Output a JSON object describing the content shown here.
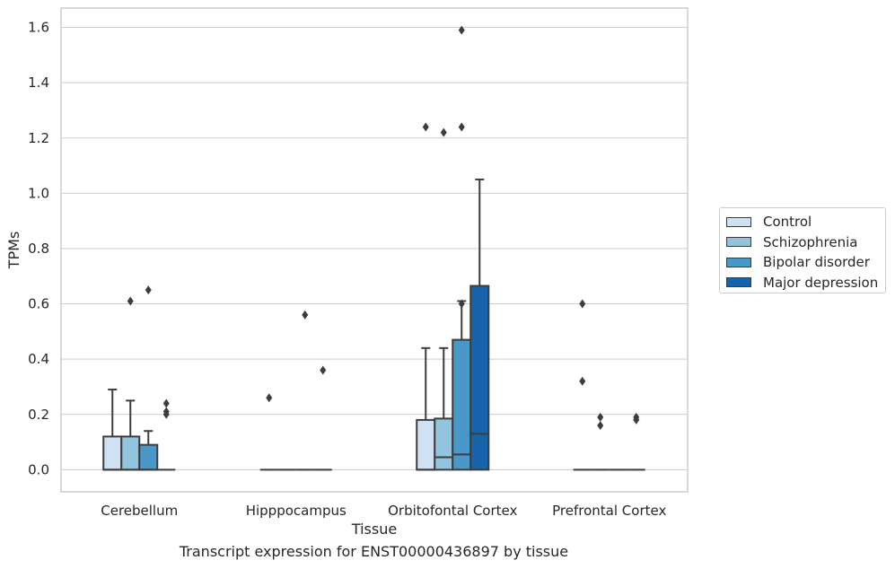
{
  "caption": "Transcript expression for ENST00000436897 by tissue",
  "chart_data": {
    "type": "box",
    "xlabel": "Tissue",
    "ylabel": "TPMs",
    "ylim": [
      -0.08,
      1.67
    ],
    "yticks": [
      "0.0",
      "0.2",
      "0.4",
      "0.6",
      "0.8",
      "1.0",
      "1.2",
      "1.4",
      "1.6"
    ],
    "grid": "horizontal",
    "legend_position": "right",
    "categories": [
      "Cerebellum",
      "Hipppocampus",
      "Orbitofontal Cortex",
      "Prefrontal Cortex"
    ],
    "series": [
      {
        "name": "Control",
        "color": "#cfe1f2"
      },
      {
        "name": "Schizophrenia",
        "color": "#93c4de"
      },
      {
        "name": "Bipolar disorder",
        "color": "#4a98c9"
      },
      {
        "name": "Major depression",
        "color": "#1764ab"
      }
    ],
    "boxes": [
      {
        "category": "Cerebellum",
        "series": "Control",
        "min": 0,
        "q1": 0,
        "median": 0,
        "q3": 0.12,
        "max": 0.29,
        "outliers": []
      },
      {
        "category": "Cerebellum",
        "series": "Schizophrenia",
        "min": 0,
        "q1": 0,
        "median": 0,
        "q3": 0.12,
        "max": 0.25,
        "outliers": [
          0.61
        ]
      },
      {
        "category": "Cerebellum",
        "series": "Bipolar disorder",
        "min": 0,
        "q1": 0,
        "median": 0,
        "q3": 0.09,
        "max": 0.14,
        "outliers": [
          0.65
        ]
      },
      {
        "category": "Cerebellum",
        "series": "Major depression",
        "min": 0,
        "q1": 0,
        "median": 0,
        "q3": 0,
        "max": 0,
        "outliers": [
          0.24,
          0.21,
          0.2
        ]
      },
      {
        "category": "Hipppocampus",
        "series": "Control",
        "min": 0,
        "q1": 0,
        "median": 0,
        "q3": 0,
        "max": 0,
        "outliers": [
          0.26
        ]
      },
      {
        "category": "Hipppocampus",
        "series": "Schizophrenia",
        "min": 0,
        "q1": 0,
        "median": 0,
        "q3": 0,
        "max": 0,
        "outliers": []
      },
      {
        "category": "Hipppocampus",
        "series": "Bipolar disorder",
        "min": 0,
        "q1": 0,
        "median": 0,
        "q3": 0,
        "max": 0,
        "outliers": [
          0.56
        ]
      },
      {
        "category": "Hipppocampus",
        "series": "Major depression",
        "min": 0,
        "q1": 0,
        "median": 0,
        "q3": 0,
        "max": 0,
        "outliers": [
          0.36
        ]
      },
      {
        "category": "Orbitofontal Cortex",
        "series": "Control",
        "min": 0,
        "q1": 0,
        "median": 0,
        "q3": 0.18,
        "max": 0.44,
        "outliers": [
          1.24
        ]
      },
      {
        "category": "Orbitofontal Cortex",
        "series": "Schizophrenia",
        "min": 0,
        "q1": 0,
        "median": 0.045,
        "q3": 0.185,
        "max": 0.44,
        "outliers": [
          1.22
        ]
      },
      {
        "category": "Orbitofontal Cortex",
        "series": "Bipolar disorder",
        "min": 0,
        "q1": 0,
        "median": 0.055,
        "q3": 0.47,
        "max": 0.61,
        "outliers": [
          0.6,
          1.24,
          1.59
        ]
      },
      {
        "category": "Orbitofontal Cortex",
        "series": "Major depression",
        "min": 0,
        "q1": 0,
        "median": 0.13,
        "q3": 0.665,
        "max": 1.05,
        "outliers": []
      },
      {
        "category": "Prefrontal Cortex",
        "series": "Control",
        "min": 0,
        "q1": 0,
        "median": 0,
        "q3": 0,
        "max": 0,
        "outliers": [
          0.6,
          0.32
        ]
      },
      {
        "category": "Prefrontal Cortex",
        "series": "Schizophrenia",
        "min": 0,
        "q1": 0,
        "median": 0,
        "q3": 0,
        "max": 0,
        "outliers": [
          0.19,
          0.16
        ]
      },
      {
        "category": "Prefrontal Cortex",
        "series": "Bipolar disorder",
        "min": 0,
        "q1": 0,
        "median": 0,
        "q3": 0,
        "max": 0,
        "outliers": []
      },
      {
        "category": "Prefrontal Cortex",
        "series": "Major depression",
        "min": 0,
        "q1": 0,
        "median": 0,
        "q3": 0,
        "max": 0,
        "outliers": [
          0.19,
          0.18
        ]
      }
    ]
  }
}
